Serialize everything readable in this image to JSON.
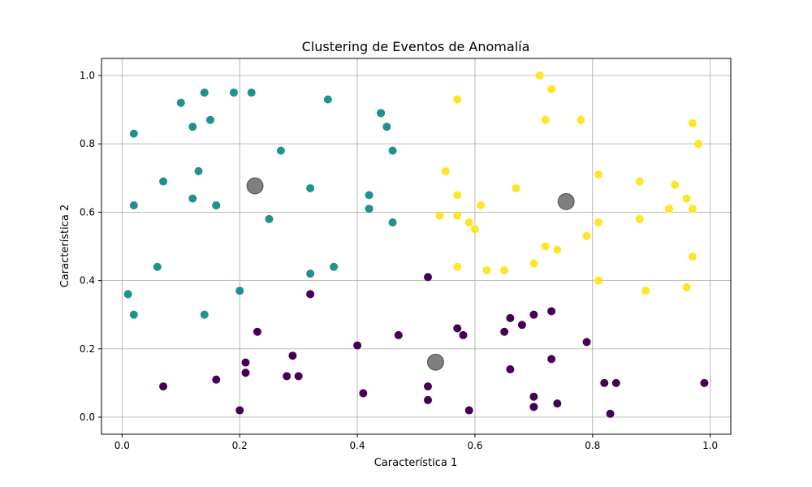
{
  "chart_data": {
    "type": "scatter",
    "title": "Clustering de Eventos de Anomalía",
    "xlabel": "Característica 1",
    "ylabel": "Característica 2",
    "xlim": [
      -0.035,
      1.035
    ],
    "ylim": [
      -0.05,
      1.05
    ],
    "xticks": [
      0.0,
      0.2,
      0.4,
      0.6,
      0.8,
      1.0
    ],
    "yticks": [
      0.0,
      0.2,
      0.4,
      0.6,
      0.8,
      1.0
    ],
    "xtick_labels": [
      "0.0",
      "0.2",
      "0.4",
      "0.6",
      "0.8",
      "1.0"
    ],
    "ytick_labels": [
      "0.0",
      "0.2",
      "0.4",
      "0.6",
      "0.8",
      "1.0"
    ],
    "grid": true,
    "colors": {
      "cluster_0": "#440154",
      "cluster_1": "#21918c",
      "cluster_2": "#fde725",
      "centroid": "#000000"
    },
    "series": [
      {
        "cluster": 1,
        "color": "#21918c",
        "points": [
          [
            0.01,
            0.36
          ],
          [
            0.02,
            0.3
          ],
          [
            0.02,
            0.62
          ],
          [
            0.02,
            0.83
          ],
          [
            0.06,
            0.44
          ],
          [
            0.07,
            0.69
          ],
          [
            0.1,
            0.92
          ],
          [
            0.12,
            0.64
          ],
          [
            0.12,
            0.85
          ],
          [
            0.13,
            0.72
          ],
          [
            0.14,
            0.3
          ],
          [
            0.14,
            0.95
          ],
          [
            0.15,
            0.87
          ],
          [
            0.16,
            0.62
          ],
          [
            0.16,
            0.62
          ],
          [
            0.19,
            0.95
          ],
          [
            0.2,
            0.37
          ],
          [
            0.22,
            0.95
          ],
          [
            0.25,
            0.58
          ],
          [
            0.27,
            0.78
          ],
          [
            0.32,
            0.67
          ],
          [
            0.32,
            0.42
          ],
          [
            0.35,
            0.93
          ],
          [
            0.36,
            0.44
          ],
          [
            0.42,
            0.65
          ],
          [
            0.42,
            0.61
          ],
          [
            0.44,
            0.89
          ],
          [
            0.44,
            0.89
          ],
          [
            0.45,
            0.85
          ],
          [
            0.46,
            0.57
          ],
          [
            0.46,
            0.78
          ]
        ]
      },
      {
        "cluster": 2,
        "color": "#fde725",
        "points": [
          [
            0.54,
            0.59
          ],
          [
            0.55,
            0.72
          ],
          [
            0.57,
            0.93
          ],
          [
            0.57,
            0.93
          ],
          [
            0.57,
            0.59
          ],
          [
            0.57,
            0.44
          ],
          [
            0.57,
            0.65
          ],
          [
            0.59,
            0.57
          ],
          [
            0.6,
            0.55
          ],
          [
            0.61,
            0.62
          ],
          [
            0.62,
            0.43
          ],
          [
            0.65,
            0.43
          ],
          [
            0.67,
            0.67
          ],
          [
            0.7,
            0.45
          ],
          [
            0.71,
            1.0
          ],
          [
            0.72,
            0.87
          ],
          [
            0.72,
            0.5
          ],
          [
            0.73,
            0.96
          ],
          [
            0.74,
            0.49
          ],
          [
            0.78,
            0.87
          ],
          [
            0.79,
            0.53
          ],
          [
            0.81,
            0.71
          ],
          [
            0.81,
            0.57
          ],
          [
            0.81,
            0.4
          ],
          [
            0.88,
            0.69
          ],
          [
            0.88,
            0.58
          ],
          [
            0.89,
            0.37
          ],
          [
            0.93,
            0.61
          ],
          [
            0.94,
            0.68
          ],
          [
            0.96,
            0.64
          ],
          [
            0.96,
            0.38
          ],
          [
            0.97,
            0.86
          ],
          [
            0.98,
            0.8
          ],
          [
            0.97,
            0.61
          ],
          [
            0.97,
            0.47
          ]
        ]
      },
      {
        "cluster": 0,
        "color": "#440154",
        "points": [
          [
            0.07,
            0.09
          ],
          [
            0.16,
            0.11
          ],
          [
            0.2,
            0.02
          ],
          [
            0.21,
            0.16
          ],
          [
            0.21,
            0.13
          ],
          [
            0.23,
            0.25
          ],
          [
            0.28,
            0.12
          ],
          [
            0.29,
            0.18
          ],
          [
            0.3,
            0.12
          ],
          [
            0.32,
            0.36
          ],
          [
            0.4,
            0.21
          ],
          [
            0.41,
            0.07
          ],
          [
            0.47,
            0.24
          ],
          [
            0.52,
            0.41
          ],
          [
            0.52,
            0.05
          ],
          [
            0.52,
            0.09
          ],
          [
            0.57,
            0.26
          ],
          [
            0.58,
            0.24
          ],
          [
            0.59,
            0.02
          ],
          [
            0.65,
            0.25
          ],
          [
            0.66,
            0.14
          ],
          [
            0.66,
            0.29
          ],
          [
            0.68,
            0.27
          ],
          [
            0.7,
            0.3
          ],
          [
            0.7,
            0.06
          ],
          [
            0.7,
            0.03
          ],
          [
            0.73,
            0.31
          ],
          [
            0.73,
            0.17
          ],
          [
            0.74,
            0.04
          ],
          [
            0.79,
            0.22
          ],
          [
            0.82,
            0.1
          ],
          [
            0.83,
            0.01
          ],
          [
            0.84,
            0.1
          ],
          [
            0.99,
            0.1
          ]
        ]
      }
    ],
    "centroids": [
      [
        0.226,
        0.677
      ],
      [
        0.533,
        0.161
      ],
      [
        0.755,
        0.631
      ]
    ]
  }
}
